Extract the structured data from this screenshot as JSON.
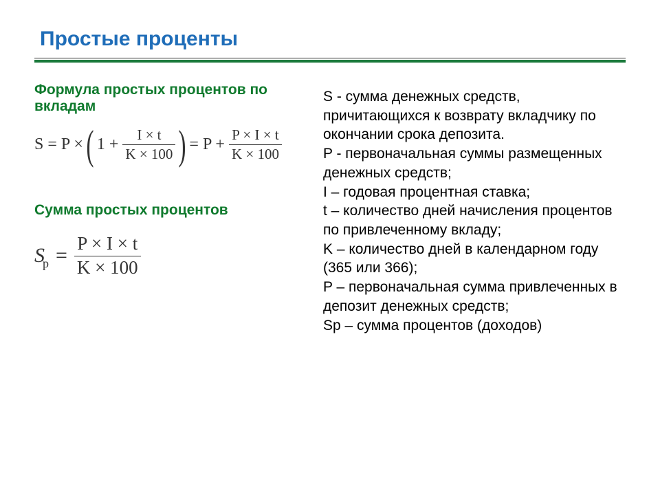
{
  "title": "Простые проценты",
  "left": {
    "sub1": "Формула простых процентов по вкладам",
    "formula1": {
      "lhs": "S = P ×",
      "in_lp": "(",
      "in_one": "1 +",
      "frac1_num": "I × t",
      "frac1_den": "K × 100",
      "in_rp": ")",
      "eq2": " =  P +",
      "frac2_num": "P × I × t",
      "frac2_den": "K × 100"
    },
    "sub2": "Сумма простых процентов",
    "formula2": {
      "S": "S",
      "p": "p",
      "eq": " = ",
      "num": "P × I × t",
      "den": "K × 100"
    }
  },
  "right": {
    "s_desc": "S - сумма денежных средств, причитающихся к возврату вкладчику по окончании срока депозита.",
    "p_desc": "P - первоначальная суммы размещенных денежных средств;",
    "i_desc": "I – годовая процентная ставка;",
    "t_desc": "t – количество дней начисления процентов по привлеченному вкладу;",
    "k_desc": "K – количество дней в календарном году (365 или 366);",
    "p2_desc": "P – первоначальная сумма привлеченных в депозит денежных средств;",
    "sp_desc": "Sp – сумма процентов (доходов)"
  }
}
